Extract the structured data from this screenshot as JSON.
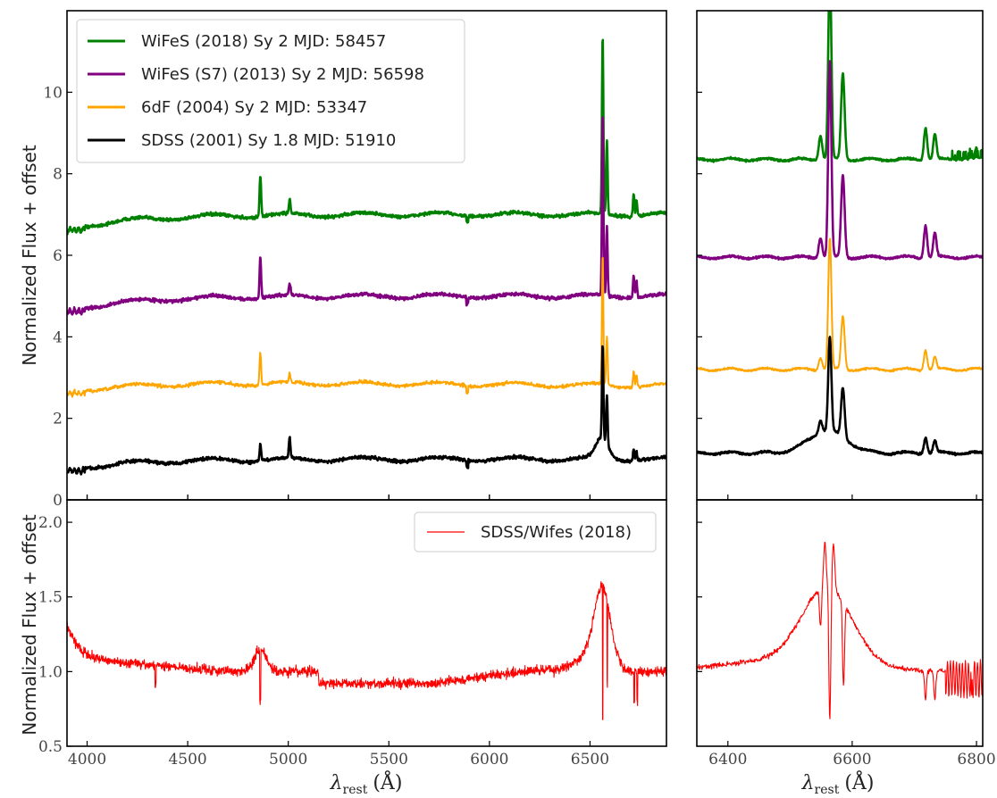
{
  "figure": {
    "ylabel": "Normalized Flux + offset",
    "xlabel_main": "λ",
    "xlabel_sub": "rest",
    "xlabel_unit": "(Å)"
  },
  "chart_data": [
    {
      "type": "line",
      "panel": "top-left",
      "xlim": [
        3900,
        6880
      ],
      "ylim": [
        0,
        12
      ],
      "xticks": [
        4000,
        4500,
        5000,
        5500,
        6000,
        6500
      ],
      "yticks": [
        0,
        2,
        4,
        6,
        8,
        10
      ],
      "legend_position": "top-left",
      "series": [
        {
          "name": "WiFeS (2018) Sy 2 MJD: 58457",
          "color": "#008000",
          "baseline": 7.0,
          "slope": 0.35
        },
        {
          "name": "WiFeS (S7) (2013) Sy 2 MJD: 56598",
          "color": "#800080",
          "baseline": 5.0,
          "slope": 0.35
        },
        {
          "name": "6dF (2004) Sy 2 MJD: 53347",
          "color": "#FFA500",
          "baseline": 2.9,
          "slope": 0.25
        },
        {
          "name": "SDSS (2001) Sy 1.8 MJD: 51910",
          "color": "#000000",
          "baseline": 1.0,
          "slope": 0.25
        }
      ],
      "features": [
        {
          "x": 4861,
          "heights": [
            1.0,
            1.0,
            0.8,
            0.4
          ]
        },
        {
          "x": 5007,
          "heights": [
            0.35,
            0.3,
            0.2,
            0.5
          ]
        },
        {
          "x": 6563,
          "heights": [
            4.4,
            4.5,
            3.2,
            2.3
          ]
        },
        {
          "x": 6584,
          "heights": [
            1.8,
            1.7,
            1.2,
            1.2
          ]
        },
        {
          "x": 6717,
          "heights": [
            0.55,
            0.55,
            0.4,
            0.3
          ]
        },
        {
          "x": 6731,
          "heights": [
            0.4,
            0.4,
            0.3,
            0.25
          ]
        }
      ]
    },
    {
      "type": "line",
      "panel": "top-right",
      "xlim": [
        6350,
        6810
      ],
      "ylim": [
        0,
        12
      ],
      "series": [
        {
          "name": "WiFeS (2018) Sy 2 MJD: 58457",
          "color": "#008000",
          "baseline": 8.35
        },
        {
          "name": "WiFeS (S7) (2013) Sy 2 MJD: 56598",
          "color": "#800080",
          "baseline": 5.95
        },
        {
          "name": "6dF (2004) Sy 2 MJD: 53347",
          "color": "#FFA500",
          "baseline": 3.2
        },
        {
          "name": "SDSS (2001) Sy 1.8 MJD: 51910",
          "color": "#000000",
          "baseline": 1.15
        }
      ]
    },
    {
      "type": "line",
      "panel": "bottom-left",
      "xlim": [
        3900,
        6880
      ],
      "ylim": [
        0.5,
        2.15
      ],
      "xticks": [
        4000,
        4500,
        5000,
        5500,
        6000,
        6500
      ],
      "yticks": [
        0.5,
        1.0,
        1.5,
        2.0
      ],
      "legend_position": "top-right",
      "series": [
        {
          "name": "SDSS/Wifes (2018)",
          "color": "#FF0000"
        }
      ]
    },
    {
      "type": "line",
      "panel": "bottom-right",
      "xlim": [
        6350,
        6810
      ],
      "ylim": [
        0.5,
        2.15
      ],
      "xticks": [
        6400,
        6600,
        6800
      ],
      "series": [
        {
          "name": "SDSS/Wifes (2018)",
          "color": "#FF0000"
        }
      ]
    }
  ]
}
